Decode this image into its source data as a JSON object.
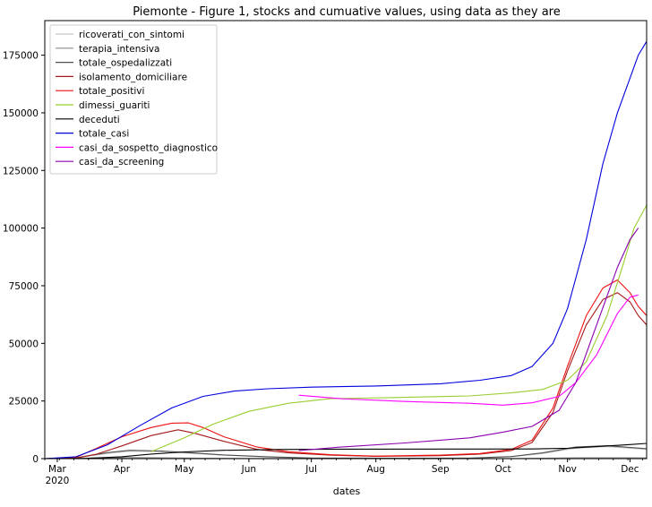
{
  "chart_data": {
    "type": "line",
    "title": "Piemonte - Figure 1, stocks and cumuative values, using data as they are",
    "xlabel": "dates",
    "ylabel": "",
    "x_range": [
      "2020-02-24",
      "2020-12-09"
    ],
    "ylim": [
      0,
      190000
    ],
    "y_ticks": [
      0,
      25000,
      50000,
      75000,
      100000,
      125000,
      150000,
      175000
    ],
    "x_ticks": [
      {
        "date": "2020-03-01",
        "label": "Mar",
        "sublabel": "2020"
      },
      {
        "date": "2020-04-01",
        "label": "Apr",
        "sublabel": ""
      },
      {
        "date": "2020-05-01",
        "label": "May",
        "sublabel": ""
      },
      {
        "date": "2020-06-01",
        "label": "Jun",
        "sublabel": ""
      },
      {
        "date": "2020-07-01",
        "label": "Jul",
        "sublabel": ""
      },
      {
        "date": "2020-08-01",
        "label": "Aug",
        "sublabel": ""
      },
      {
        "date": "2020-09-01",
        "label": "Sep",
        "sublabel": ""
      },
      {
        "date": "2020-10-01",
        "label": "Oct",
        "sublabel": ""
      },
      {
        "date": "2020-11-01",
        "label": "Nov",
        "sublabel": ""
      },
      {
        "date": "2020-12-01",
        "label": "Dec",
        "sublabel": ""
      }
    ],
    "grid": false,
    "legend_position": "upper-left",
    "series": [
      {
        "name": "ricoverati_con_sintomi",
        "color": "#c8c8c8",
        "points": [
          [
            "2020-02-24",
            0
          ],
          [
            "2020-03-10",
            300
          ],
          [
            "2020-03-25",
            2200
          ],
          [
            "2020-04-05",
            3200
          ],
          [
            "2020-04-20",
            3000
          ],
          [
            "2020-05-05",
            2200
          ],
          [
            "2020-05-20",
            1500
          ],
          [
            "2020-06-10",
            700
          ],
          [
            "2020-07-01",
            250
          ],
          [
            "2020-08-15",
            150
          ],
          [
            "2020-09-15",
            200
          ],
          [
            "2020-10-05",
            800
          ],
          [
            "2020-10-20",
            2200
          ],
          [
            "2020-11-05",
            4500
          ],
          [
            "2020-11-20",
            5200
          ],
          [
            "2020-12-09",
            4000
          ]
        ]
      },
      {
        "name": "terapia_intensiva",
        "color": "#8c8c8c",
        "points": [
          [
            "2020-02-24",
            0
          ],
          [
            "2020-03-10",
            100
          ],
          [
            "2020-03-25",
            350
          ],
          [
            "2020-04-05",
            450
          ],
          [
            "2020-04-20",
            350
          ],
          [
            "2020-05-10",
            200
          ],
          [
            "2020-06-01",
            80
          ],
          [
            "2020-07-01",
            20
          ],
          [
            "2020-09-15",
            15
          ],
          [
            "2020-10-10",
            80
          ],
          [
            "2020-10-25",
            250
          ],
          [
            "2020-11-10",
            400
          ],
          [
            "2020-11-25",
            400
          ],
          [
            "2020-12-09",
            300
          ]
        ]
      },
      {
        "name": "totale_ospedalizzati",
        "color": "#505050",
        "points": [
          [
            "2020-02-24",
            0
          ],
          [
            "2020-03-10",
            400
          ],
          [
            "2020-03-25",
            2600
          ],
          [
            "2020-04-05",
            3600
          ],
          [
            "2020-04-20",
            3300
          ],
          [
            "2020-05-05",
            2500
          ],
          [
            "2020-05-20",
            1600
          ],
          [
            "2020-06-10",
            800
          ],
          [
            "2020-07-01",
            280
          ],
          [
            "2020-08-15",
            170
          ],
          [
            "2020-09-15",
            220
          ],
          [
            "2020-10-05",
            900
          ],
          [
            "2020-10-20",
            2500
          ],
          [
            "2020-11-05",
            5000
          ],
          [
            "2020-11-20",
            5600
          ],
          [
            "2020-12-09",
            4300
          ]
        ]
      },
      {
        "name": "isolamento_domiciliare",
        "color": "#a51a1a",
        "points": [
          [
            "2020-02-24",
            0
          ],
          [
            "2020-03-10",
            200
          ],
          [
            "2020-03-20",
            2000
          ],
          [
            "2020-04-01",
            5500
          ],
          [
            "2020-04-15",
            10000
          ],
          [
            "2020-04-28",
            12500
          ],
          [
            "2020-05-06",
            11000
          ],
          [
            "2020-05-20",
            7500
          ],
          [
            "2020-06-05",
            4000
          ],
          [
            "2020-06-20",
            2500
          ],
          [
            "2020-07-10",
            1500
          ],
          [
            "2020-08-01",
            1000
          ],
          [
            "2020-09-01",
            1300
          ],
          [
            "2020-09-20",
            2000
          ],
          [
            "2020-10-05",
            3500
          ],
          [
            "2020-10-15",
            7000
          ],
          [
            "2020-10-25",
            20000
          ],
          [
            "2020-11-01",
            38000
          ],
          [
            "2020-11-10",
            58000
          ],
          [
            "2020-11-18",
            69000
          ],
          [
            "2020-11-25",
            72000
          ],
          [
            "2020-12-01",
            68000
          ],
          [
            "2020-12-05",
            62000
          ],
          [
            "2020-12-09",
            58000
          ]
        ]
      },
      {
        "name": "totale_positivi",
        "color": "#ee1111",
        "points": [
          [
            "2020-02-24",
            0
          ],
          [
            "2020-03-10",
            600
          ],
          [
            "2020-03-20",
            4500
          ],
          [
            "2020-04-01",
            9500
          ],
          [
            "2020-04-15",
            13500
          ],
          [
            "2020-04-25",
            15400
          ],
          [
            "2020-05-03",
            15500
          ],
          [
            "2020-05-10",
            13500
          ],
          [
            "2020-05-20",
            9500
          ],
          [
            "2020-06-05",
            5000
          ],
          [
            "2020-06-20",
            3000
          ],
          [
            "2020-07-10",
            1700
          ],
          [
            "2020-08-01",
            1100
          ],
          [
            "2020-09-01",
            1500
          ],
          [
            "2020-09-20",
            2200
          ],
          [
            "2020-10-05",
            4000
          ],
          [
            "2020-10-15",
            8000
          ],
          [
            "2020-10-25",
            22000
          ],
          [
            "2020-11-01",
            40000
          ],
          [
            "2020-11-10",
            62000
          ],
          [
            "2020-11-18",
            74000
          ],
          [
            "2020-11-25",
            77500
          ],
          [
            "2020-12-01",
            72000
          ],
          [
            "2020-12-05",
            66000
          ],
          [
            "2020-12-09",
            62000
          ]
        ]
      },
      {
        "name": "dimessi_guariti",
        "color": "#9acd32",
        "points": [
          [
            "2020-04-15",
            3000
          ],
          [
            "2020-05-01",
            9000
          ],
          [
            "2020-05-15",
            15000
          ],
          [
            "2020-06-01",
            20500
          ],
          [
            "2020-06-20",
            24000
          ],
          [
            "2020-07-10",
            26000
          ],
          [
            "2020-08-10",
            26500
          ],
          [
            "2020-09-15",
            27200
          ],
          [
            "2020-10-05",
            28500
          ],
          [
            "2020-10-20",
            30000
          ],
          [
            "2020-11-01",
            34000
          ],
          [
            "2020-11-10",
            42000
          ],
          [
            "2020-11-20",
            62000
          ],
          [
            "2020-11-28",
            85000
          ],
          [
            "2020-12-03",
            100000
          ],
          [
            "2020-12-09",
            110000
          ]
        ]
      },
      {
        "name": "deceduti",
        "color": "#000000",
        "points": [
          [
            "2020-02-24",
            0
          ],
          [
            "2020-03-15",
            100
          ],
          [
            "2020-04-01",
            800
          ],
          [
            "2020-04-15",
            2000
          ],
          [
            "2020-05-01",
            2900
          ],
          [
            "2020-05-20",
            3600
          ],
          [
            "2020-06-15",
            3950
          ],
          [
            "2020-07-15",
            4100
          ],
          [
            "2020-09-15",
            4150
          ],
          [
            "2020-10-15",
            4200
          ],
          [
            "2020-11-01",
            4500
          ],
          [
            "2020-11-15",
            5200
          ],
          [
            "2020-12-01",
            6100
          ],
          [
            "2020-12-09",
            6600
          ]
        ]
      },
      {
        "name": "totale_casi",
        "color": "#0000dd",
        "points": [
          [
            "2020-02-24",
            0
          ],
          [
            "2020-03-10",
            800
          ],
          [
            "2020-03-25",
            6000
          ],
          [
            "2020-04-10",
            14500
          ],
          [
            "2020-04-25",
            22000
          ],
          [
            "2020-05-10",
            27000
          ],
          [
            "2020-05-25",
            29300
          ],
          [
            "2020-06-10",
            30300
          ],
          [
            "2020-07-01",
            31000
          ],
          [
            "2020-08-01",
            31500
          ],
          [
            "2020-09-01",
            32500
          ],
          [
            "2020-09-20",
            34000
          ],
          [
            "2020-10-05",
            36000
          ],
          [
            "2020-10-15",
            40000
          ],
          [
            "2020-10-25",
            50000
          ],
          [
            "2020-11-01",
            65000
          ],
          [
            "2020-11-10",
            95000
          ],
          [
            "2020-11-18",
            128000
          ],
          [
            "2020-11-25",
            150000
          ],
          [
            "2020-12-01",
            165000
          ],
          [
            "2020-12-05",
            175000
          ],
          [
            "2020-12-09",
            181000
          ]
        ]
      },
      {
        "name": "casi_da_sospetto_diagnostico",
        "color": "#ff00ff",
        "points": [
          [
            "2020-06-25",
            27500
          ],
          [
            "2020-07-15",
            26000
          ],
          [
            "2020-08-15",
            24800
          ],
          [
            "2020-09-15",
            24000
          ],
          [
            "2020-10-01",
            23200
          ],
          [
            "2020-10-15",
            24200
          ],
          [
            "2020-10-28",
            27000
          ],
          [
            "2020-11-05",
            33000
          ],
          [
            "2020-11-15",
            45000
          ],
          [
            "2020-11-25",
            63000
          ],
          [
            "2020-12-01",
            70000
          ],
          [
            "2020-12-05",
            71000
          ]
        ]
      },
      {
        "name": "casi_da_screening",
        "color": "#8b00b0",
        "points": [
          [
            "2020-06-25",
            3500
          ],
          [
            "2020-07-15",
            5000
          ],
          [
            "2020-08-15",
            6800
          ],
          [
            "2020-09-15",
            9000
          ],
          [
            "2020-10-01",
            11500
          ],
          [
            "2020-10-15",
            14000
          ],
          [
            "2020-10-28",
            21000
          ],
          [
            "2020-11-05",
            33000
          ],
          [
            "2020-11-15",
            58000
          ],
          [
            "2020-11-25",
            83000
          ],
          [
            "2020-12-01",
            95000
          ],
          [
            "2020-12-05",
            100000
          ]
        ]
      }
    ]
  }
}
